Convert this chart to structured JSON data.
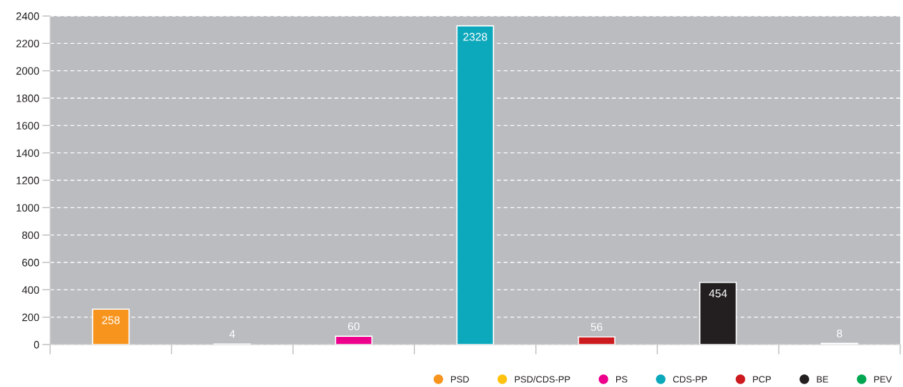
{
  "chart_data": {
    "type": "bar",
    "categories": [
      null,
      null,
      null,
      null,
      null,
      null,
      null
    ],
    "series": [
      {
        "name": "PSD",
        "color": "#f7941d",
        "values": [
          258,
          null,
          null,
          null,
          null,
          null,
          null
        ]
      },
      {
        "name": "PSD/CDS-PP",
        "color": "#ffc20e",
        "values": [
          null,
          4,
          null,
          null,
          null,
          null,
          null
        ]
      },
      {
        "name": "PS",
        "color": "#ec008c",
        "values": [
          null,
          null,
          60,
          null,
          null,
          null,
          null
        ]
      },
      {
        "name": "CDS-PP",
        "color": "#0ca8bc",
        "values": [
          null,
          null,
          null,
          2328,
          null,
          null,
          null
        ]
      },
      {
        "name": "PCP",
        "color": "#cc1a1f",
        "values": [
          null,
          null,
          null,
          null,
          56,
          null,
          null
        ]
      },
      {
        "name": "BE",
        "color": "#231f20",
        "values": [
          null,
          null,
          null,
          null,
          null,
          454,
          null
        ]
      },
      {
        "name": "PEV",
        "color": "#00a651",
        "values": [
          null,
          null,
          null,
          null,
          null,
          null,
          8
        ]
      }
    ],
    "ylim": [
      0,
      2400
    ],
    "yticks": [
      0,
      200,
      400,
      600,
      800,
      1000,
      1200,
      1400,
      1600,
      1800,
      2000,
      2200,
      2400
    ],
    "grid": "y",
    "legend": "bottom right",
    "data_labels": true,
    "tick_labels": "y"
  }
}
